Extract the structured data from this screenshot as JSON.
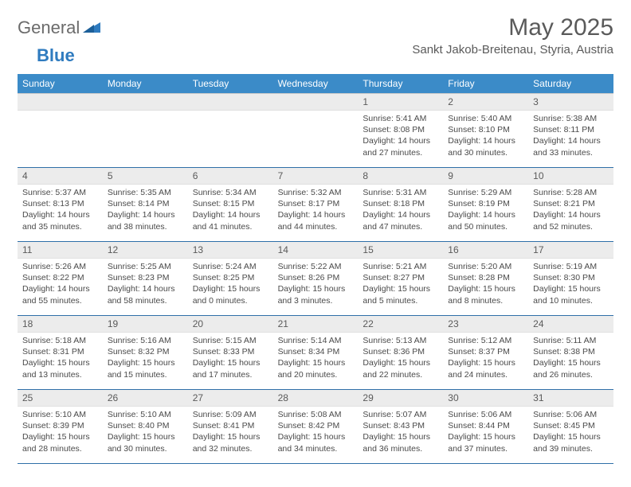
{
  "logo": {
    "part1": "General",
    "part2": "Blue"
  },
  "title": "May 2025",
  "location": "Sankt Jakob-Breitenau, Styria, Austria",
  "colors": {
    "header_bg": "#3b8bc8",
    "header_text": "#ffffff",
    "daynum_bg": "#ececec",
    "week_divider": "#2f6fa8",
    "text": "#4a4a4a",
    "title_text": "#5a5a5a",
    "logo_gray": "#6b6b6b",
    "logo_blue": "#2f7bbf"
  },
  "weekdays": [
    "Sunday",
    "Monday",
    "Tuesday",
    "Wednesday",
    "Thursday",
    "Friday",
    "Saturday"
  ],
  "weeks": [
    [
      {
        "n": "",
        "sunrise": "",
        "sunset": "",
        "daylight": ""
      },
      {
        "n": "",
        "sunrise": "",
        "sunset": "",
        "daylight": ""
      },
      {
        "n": "",
        "sunrise": "",
        "sunset": "",
        "daylight": ""
      },
      {
        "n": "",
        "sunrise": "",
        "sunset": "",
        "daylight": ""
      },
      {
        "n": "1",
        "sunrise": "Sunrise: 5:41 AM",
        "sunset": "Sunset: 8:08 PM",
        "daylight": "Daylight: 14 hours and 27 minutes."
      },
      {
        "n": "2",
        "sunrise": "Sunrise: 5:40 AM",
        "sunset": "Sunset: 8:10 PM",
        "daylight": "Daylight: 14 hours and 30 minutes."
      },
      {
        "n": "3",
        "sunrise": "Sunrise: 5:38 AM",
        "sunset": "Sunset: 8:11 PM",
        "daylight": "Daylight: 14 hours and 33 minutes."
      }
    ],
    [
      {
        "n": "4",
        "sunrise": "Sunrise: 5:37 AM",
        "sunset": "Sunset: 8:13 PM",
        "daylight": "Daylight: 14 hours and 35 minutes."
      },
      {
        "n": "5",
        "sunrise": "Sunrise: 5:35 AM",
        "sunset": "Sunset: 8:14 PM",
        "daylight": "Daylight: 14 hours and 38 minutes."
      },
      {
        "n": "6",
        "sunrise": "Sunrise: 5:34 AM",
        "sunset": "Sunset: 8:15 PM",
        "daylight": "Daylight: 14 hours and 41 minutes."
      },
      {
        "n": "7",
        "sunrise": "Sunrise: 5:32 AM",
        "sunset": "Sunset: 8:17 PM",
        "daylight": "Daylight: 14 hours and 44 minutes."
      },
      {
        "n": "8",
        "sunrise": "Sunrise: 5:31 AM",
        "sunset": "Sunset: 8:18 PM",
        "daylight": "Daylight: 14 hours and 47 minutes."
      },
      {
        "n": "9",
        "sunrise": "Sunrise: 5:29 AM",
        "sunset": "Sunset: 8:19 PM",
        "daylight": "Daylight: 14 hours and 50 minutes."
      },
      {
        "n": "10",
        "sunrise": "Sunrise: 5:28 AM",
        "sunset": "Sunset: 8:21 PM",
        "daylight": "Daylight: 14 hours and 52 minutes."
      }
    ],
    [
      {
        "n": "11",
        "sunrise": "Sunrise: 5:26 AM",
        "sunset": "Sunset: 8:22 PM",
        "daylight": "Daylight: 14 hours and 55 minutes."
      },
      {
        "n": "12",
        "sunrise": "Sunrise: 5:25 AM",
        "sunset": "Sunset: 8:23 PM",
        "daylight": "Daylight: 14 hours and 58 minutes."
      },
      {
        "n": "13",
        "sunrise": "Sunrise: 5:24 AM",
        "sunset": "Sunset: 8:25 PM",
        "daylight": "Daylight: 15 hours and 0 minutes."
      },
      {
        "n": "14",
        "sunrise": "Sunrise: 5:22 AM",
        "sunset": "Sunset: 8:26 PM",
        "daylight": "Daylight: 15 hours and 3 minutes."
      },
      {
        "n": "15",
        "sunrise": "Sunrise: 5:21 AM",
        "sunset": "Sunset: 8:27 PM",
        "daylight": "Daylight: 15 hours and 5 minutes."
      },
      {
        "n": "16",
        "sunrise": "Sunrise: 5:20 AM",
        "sunset": "Sunset: 8:28 PM",
        "daylight": "Daylight: 15 hours and 8 minutes."
      },
      {
        "n": "17",
        "sunrise": "Sunrise: 5:19 AM",
        "sunset": "Sunset: 8:30 PM",
        "daylight": "Daylight: 15 hours and 10 minutes."
      }
    ],
    [
      {
        "n": "18",
        "sunrise": "Sunrise: 5:18 AM",
        "sunset": "Sunset: 8:31 PM",
        "daylight": "Daylight: 15 hours and 13 minutes."
      },
      {
        "n": "19",
        "sunrise": "Sunrise: 5:16 AM",
        "sunset": "Sunset: 8:32 PM",
        "daylight": "Daylight: 15 hours and 15 minutes."
      },
      {
        "n": "20",
        "sunrise": "Sunrise: 5:15 AM",
        "sunset": "Sunset: 8:33 PM",
        "daylight": "Daylight: 15 hours and 17 minutes."
      },
      {
        "n": "21",
        "sunrise": "Sunrise: 5:14 AM",
        "sunset": "Sunset: 8:34 PM",
        "daylight": "Daylight: 15 hours and 20 minutes."
      },
      {
        "n": "22",
        "sunrise": "Sunrise: 5:13 AM",
        "sunset": "Sunset: 8:36 PM",
        "daylight": "Daylight: 15 hours and 22 minutes."
      },
      {
        "n": "23",
        "sunrise": "Sunrise: 5:12 AM",
        "sunset": "Sunset: 8:37 PM",
        "daylight": "Daylight: 15 hours and 24 minutes."
      },
      {
        "n": "24",
        "sunrise": "Sunrise: 5:11 AM",
        "sunset": "Sunset: 8:38 PM",
        "daylight": "Daylight: 15 hours and 26 minutes."
      }
    ],
    [
      {
        "n": "25",
        "sunrise": "Sunrise: 5:10 AM",
        "sunset": "Sunset: 8:39 PM",
        "daylight": "Daylight: 15 hours and 28 minutes."
      },
      {
        "n": "26",
        "sunrise": "Sunrise: 5:10 AM",
        "sunset": "Sunset: 8:40 PM",
        "daylight": "Daylight: 15 hours and 30 minutes."
      },
      {
        "n": "27",
        "sunrise": "Sunrise: 5:09 AM",
        "sunset": "Sunset: 8:41 PM",
        "daylight": "Daylight: 15 hours and 32 minutes."
      },
      {
        "n": "28",
        "sunrise": "Sunrise: 5:08 AM",
        "sunset": "Sunset: 8:42 PM",
        "daylight": "Daylight: 15 hours and 34 minutes."
      },
      {
        "n": "29",
        "sunrise": "Sunrise: 5:07 AM",
        "sunset": "Sunset: 8:43 PM",
        "daylight": "Daylight: 15 hours and 36 minutes."
      },
      {
        "n": "30",
        "sunrise": "Sunrise: 5:06 AM",
        "sunset": "Sunset: 8:44 PM",
        "daylight": "Daylight: 15 hours and 37 minutes."
      },
      {
        "n": "31",
        "sunrise": "Sunrise: 5:06 AM",
        "sunset": "Sunset: 8:45 PM",
        "daylight": "Daylight: 15 hours and 39 minutes."
      }
    ]
  ]
}
